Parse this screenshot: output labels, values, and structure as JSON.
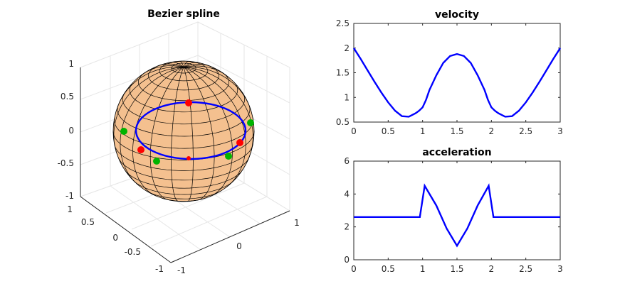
{
  "chart_data": [
    {
      "type": "surface3d",
      "title": "Bezier spline",
      "surface": "unit sphere",
      "surface_color": "#f4c08f",
      "curve_color": "#0000ff",
      "control_point_colors": {
        "red": "#ff0000",
        "green": "#00b400"
      },
      "xlim": [
        -1,
        1
      ],
      "ylim": [
        -1,
        1
      ],
      "zlim": [
        -1,
        1
      ],
      "z_ticks": [
        "1",
        "0.5",
        "0",
        "-0.5",
        "-1"
      ],
      "x_ticks": [
        "1",
        "0.5",
        "0",
        "-0.5",
        "-1"
      ],
      "y_ticks": [
        "-1",
        "0",
        "1"
      ],
      "red_points_count": 4,
      "green_points_count": 4
    },
    {
      "type": "line",
      "title": "velocity",
      "xlim": [
        0,
        3
      ],
      "ylim": [
        0.5,
        2.5
      ],
      "x_ticks": [
        "0",
        "0.5",
        "1",
        "1.5",
        "2",
        "2.5",
        "3"
      ],
      "y_ticks": [
        "2.5",
        "2",
        "1.5",
        "1",
        "0.5"
      ],
      "color": "#0000ff",
      "x": [
        0,
        0.1,
        0.2,
        0.3,
        0.4,
        0.5,
        0.6,
        0.7,
        0.8,
        0.9,
        0.95,
        1.0,
        1.05,
        1.1,
        1.2,
        1.3,
        1.4,
        1.5,
        1.6,
        1.7,
        1.8,
        1.9,
        1.95,
        2.0,
        2.05,
        2.1,
        2.2,
        2.3,
        2.4,
        2.5,
        2.6,
        2.7,
        2.8,
        2.9,
        3.0
      ],
      "y": [
        2.0,
        1.78,
        1.55,
        1.32,
        1.1,
        0.9,
        0.73,
        0.62,
        0.61,
        0.68,
        0.73,
        0.8,
        0.95,
        1.15,
        1.45,
        1.7,
        1.84,
        1.88,
        1.84,
        1.7,
        1.45,
        1.15,
        0.95,
        0.8,
        0.73,
        0.68,
        0.61,
        0.62,
        0.73,
        0.9,
        1.1,
        1.32,
        1.55,
        1.78,
        2.0
      ]
    },
    {
      "type": "line",
      "title": "acceleration",
      "xlim": [
        0,
        3
      ],
      "ylim": [
        0,
        6
      ],
      "x_ticks": [
        "0",
        "0.5",
        "1",
        "1.5",
        "2",
        "2.5",
        "3"
      ],
      "y_ticks": [
        "6",
        "4",
        "2",
        "0"
      ],
      "color": "#0000ff",
      "x": [
        0,
        0.96,
        1.03,
        1.2,
        1.35,
        1.5,
        1.65,
        1.8,
        1.96,
        2.03,
        3.0
      ],
      "y": [
        2.6,
        2.6,
        4.5,
        3.3,
        1.9,
        0.85,
        1.9,
        3.3,
        4.5,
        2.6,
        2.6
      ]
    }
  ]
}
